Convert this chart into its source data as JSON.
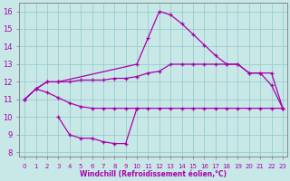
{
  "background_color": "#c8e8e8",
  "grid_color": "#99cccc",
  "line_color": "#aa00aa",
  "xlabel": "Windchill (Refroidissement éolien,°C)",
  "xlim_min": -0.5,
  "xlim_max": 23.4,
  "ylim_min": 7.75,
  "ylim_max": 16.5,
  "xticks": [
    0,
    1,
    2,
    3,
    4,
    5,
    6,
    7,
    8,
    9,
    10,
    11,
    12,
    13,
    14,
    15,
    16,
    17,
    18,
    19,
    20,
    21,
    22,
    23
  ],
  "yticks": [
    8,
    9,
    10,
    11,
    12,
    13,
    14,
    15,
    16
  ],
  "curve1_x": [
    0,
    1,
    2,
    3,
    10,
    11,
    12,
    13,
    14,
    15,
    16,
    17,
    18,
    19,
    20,
    21,
    22,
    23
  ],
  "curve1_y": [
    11.0,
    11.6,
    12.0,
    12.0,
    13.0,
    14.5,
    16.0,
    15.8,
    15.3,
    14.7,
    14.1,
    13.5,
    13.0,
    13.0,
    12.5,
    12.5,
    11.8,
    10.5
  ],
  "curve2_x": [
    0,
    1,
    2,
    3,
    4,
    5,
    6,
    7,
    8,
    9,
    10,
    11,
    12,
    13,
    14,
    15,
    16,
    17,
    18,
    19,
    20,
    21,
    22,
    23
  ],
  "curve2_y": [
    11.0,
    11.6,
    12.0,
    12.0,
    12.0,
    12.1,
    12.1,
    12.1,
    12.2,
    12.2,
    12.3,
    12.5,
    12.6,
    13.0,
    13.0,
    13.0,
    13.0,
    13.0,
    13.0,
    13.0,
    12.5,
    12.5,
    12.5,
    10.5
  ],
  "curve3_x": [
    0,
    1,
    2,
    3,
    4,
    5,
    6,
    7,
    8,
    9,
    10,
    11,
    12,
    13,
    14,
    15,
    16,
    17,
    18,
    19,
    20,
    21,
    22,
    23
  ],
  "curve3_y": [
    11.0,
    11.6,
    11.4,
    11.1,
    10.8,
    10.6,
    10.5,
    10.5,
    10.5,
    10.5,
    10.5,
    10.5,
    10.5,
    10.5,
    10.5,
    10.5,
    10.5,
    10.5,
    10.5,
    10.5,
    10.5,
    10.5,
    10.5,
    10.5
  ],
  "curve4_x": [
    3,
    4,
    5,
    6,
    7,
    8,
    9,
    10
  ],
  "curve4_y": [
    10.0,
    9.0,
    8.8,
    8.8,
    8.6,
    8.5,
    8.5,
    10.5
  ]
}
